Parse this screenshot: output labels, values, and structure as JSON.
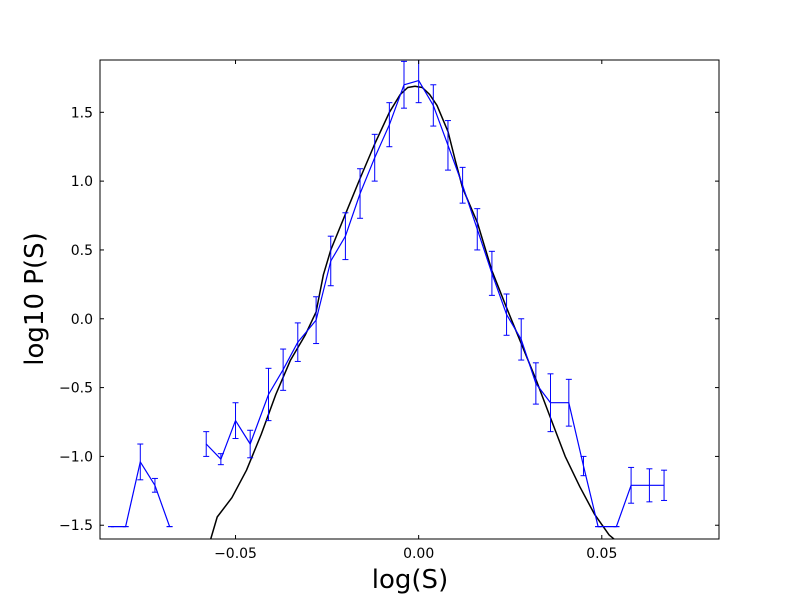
{
  "chart_data": {
    "type": "line",
    "xlabel": "log(S)",
    "ylabel": "log10 P(S)",
    "xlim": [
      -0.087,
      0.082
    ],
    "ylim": [
      -1.6,
      1.88
    ],
    "x_ticks": [
      -0.05,
      0.0,
      0.05
    ],
    "x_tick_labels": [
      "−0.05",
      "0.00",
      "0.05"
    ],
    "y_ticks": [
      -1.5,
      -1.0,
      -0.5,
      0.0,
      0.5,
      1.0,
      1.5
    ],
    "y_tick_labels": [
      "−1.5",
      "−1.0",
      "−0.5",
      "0.0",
      "0.5",
      "1.0",
      "1.5"
    ],
    "grid": false,
    "series": [
      {
        "color": "#000000",
        "style": "line",
        "x": [
          -0.057,
          -0.055,
          -0.051,
          -0.047,
          -0.043,
          -0.039,
          -0.035,
          -0.031,
          -0.028,
          -0.026,
          -0.024,
          -0.02,
          -0.016,
          -0.012,
          -0.008,
          -0.005,
          -0.003,
          -0.001,
          0.001,
          0.003,
          0.005,
          0.008,
          0.01,
          0.012,
          0.016,
          0.02,
          0.024,
          0.028,
          0.032,
          0.036,
          0.04,
          0.044,
          0.048,
          0.052,
          0.056,
          0.06
        ],
        "y": [
          -1.62,
          -1.44,
          -1.3,
          -1.1,
          -0.84,
          -0.55,
          -0.3,
          -0.12,
          0.05,
          0.32,
          0.5,
          0.76,
          1.02,
          1.27,
          1.5,
          1.63,
          1.68,
          1.69,
          1.68,
          1.63,
          1.55,
          1.36,
          1.15,
          0.95,
          0.7,
          0.35,
          0.08,
          -0.18,
          -0.44,
          -0.72,
          -1.0,
          -1.22,
          -1.42,
          -1.57,
          -1.66,
          -1.76
        ]
      },
      {
        "color": "#0000ff",
        "style": "errorbar",
        "segments": [
          {
            "x": [
              -0.084,
              -0.08,
              -0.076,
              -0.072,
              -0.068
            ],
            "y": [
              -1.51,
              -1.51,
              -1.04,
              -1.21,
              -1.51
            ],
            "err": [
              0,
              0,
              0.13,
              0.05,
              0
            ]
          },
          {
            "x": [
              -0.058,
              -0.054,
              -0.05,
              -0.046,
              -0.041,
              -0.037,
              -0.033,
              -0.028,
              -0.024,
              -0.02,
              -0.016,
              -0.012,
              -0.008,
              -0.004,
              0.0,
              0.004,
              0.008,
              0.012,
              0.016,
              0.02,
              0.024,
              0.028,
              0.032,
              0.036,
              0.041,
              0.045,
              0.049,
              0.054,
              0.058,
              0.063,
              0.067
            ],
            "y": [
              -0.91,
              -1.02,
              -0.74,
              -0.91,
              -0.55,
              -0.37,
              -0.17,
              -0.01,
              0.42,
              0.6,
              0.91,
              1.17,
              1.41,
              1.7,
              1.73,
              1.55,
              1.26,
              0.97,
              0.65,
              0.33,
              0.03,
              -0.15,
              -0.47,
              -0.61,
              -0.61,
              -1.07,
              -1.51,
              -1.51,
              -1.21,
              -1.21,
              -1.21
            ],
            "err": [
              0.09,
              0.04,
              0.13,
              0.1,
              0.19,
              0.15,
              0.14,
              0.17,
              0.18,
              0.17,
              0.18,
              0.17,
              0.16,
              0.17,
              0.16,
              0.15,
              0.18,
              0.13,
              0.15,
              0.16,
              0.15,
              0.15,
              0.15,
              0.21,
              0.17,
              0.07,
              0,
              0,
              0.13,
              0.12,
              0.11
            ]
          }
        ]
      }
    ]
  }
}
